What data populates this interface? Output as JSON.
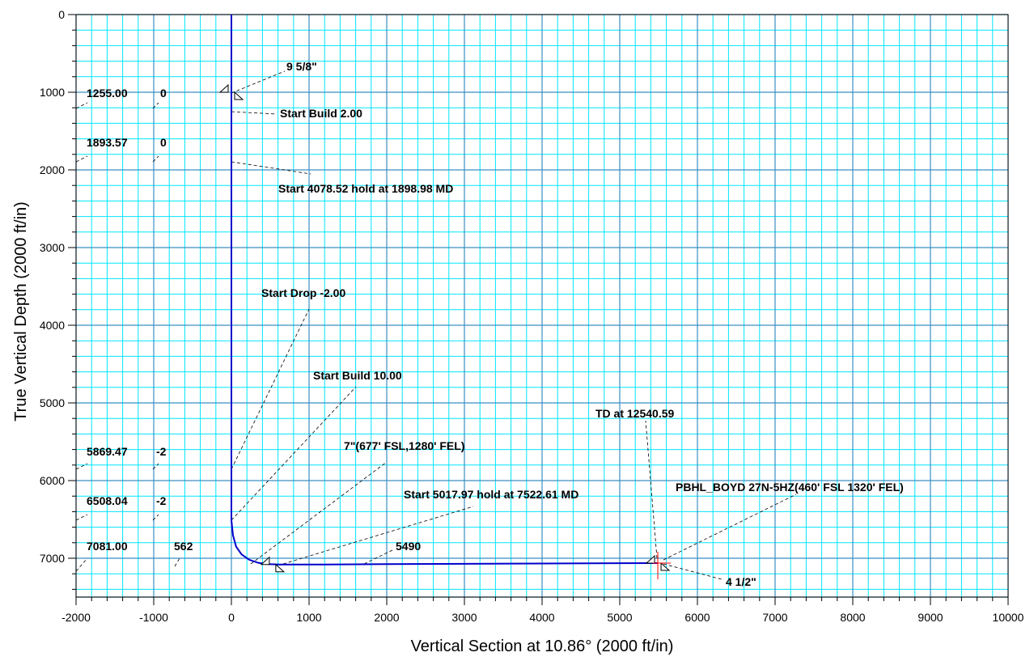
{
  "chart_data": {
    "type": "line",
    "xlabel": "Vertical Section at 10.86° (2000 ft/in)",
    "ylabel": "True Vertical Depth (2000 ft/in)",
    "xlim": [
      -2000,
      10000
    ],
    "ylim": [
      0,
      7500
    ],
    "y_inverted": true,
    "x_ticks": [
      -2000,
      -1000,
      0,
      1000,
      2000,
      3000,
      4000,
      5000,
      6000,
      7000,
      8000,
      9000,
      10000
    ],
    "x_tick_labels": [
      "-2000",
      "-1000",
      "0",
      "1000",
      "2000",
      "3000",
      "4000",
      "5000",
      "6000",
      "7000",
      "8000",
      "9000",
      "10000"
    ],
    "y_ticks": [
      0,
      1000,
      2000,
      3000,
      4000,
      5000,
      6000,
      7000
    ],
    "y_tick_labels": [
      "0",
      "1000",
      "2000",
      "3000",
      "4000",
      "5000",
      "6000",
      "7000"
    ],
    "major_grid_step": 1000,
    "minor_grid_step": 200,
    "grid": true,
    "series": [
      {
        "color": "#0000cc",
        "x": [
          0,
          0,
          0,
          0,
          0,
          20,
          60,
          130,
          230,
          350,
          480,
          620,
          800,
          1200,
          2000,
          3000,
          4000,
          5000,
          5490
        ],
        "y": [
          0,
          1255,
          1900,
          5869,
          6508,
          6700,
          6850,
          6950,
          7020,
          7060,
          7075,
          7081,
          7081,
          7080,
          7076,
          7072,
          7068,
          7064,
          7062
        ]
      }
    ],
    "casing_markers": [
      {
        "label": "9 5/8\"",
        "x": 0,
        "y": 1000
      },
      {
        "label": "7\"(677' FSL,1280' FEL)",
        "x": 530,
        "y": 7081
      },
      {
        "label": "4 1/2\"",
        "x": 5490,
        "y": 7062
      }
    ],
    "annotations": [
      "9 5/8\"",
      "Start Build 2.00",
      "Start 4078.52 hold at 1898.98 MD",
      "Start Drop -2.00",
      "Start Build 10.00",
      "7\"(677' FSL,1280' FEL)",
      "Start 5017.97 hold at 7522.61 MD",
      "5490",
      "TD at 12540.59",
      "PBHL_BOYD 27N-5HZ(460' FSL 1320' FEL)",
      "4 1/2\""
    ],
    "left_table": [
      {
        "tvd": "1255.00",
        "value": "0"
      },
      {
        "tvd": "1893.57",
        "value": "0"
      },
      {
        "tvd": "5869.47",
        "value": "-2"
      },
      {
        "tvd": "6508.04",
        "value": "-2"
      },
      {
        "tvd": "7081.00",
        "value": "562"
      }
    ]
  }
}
